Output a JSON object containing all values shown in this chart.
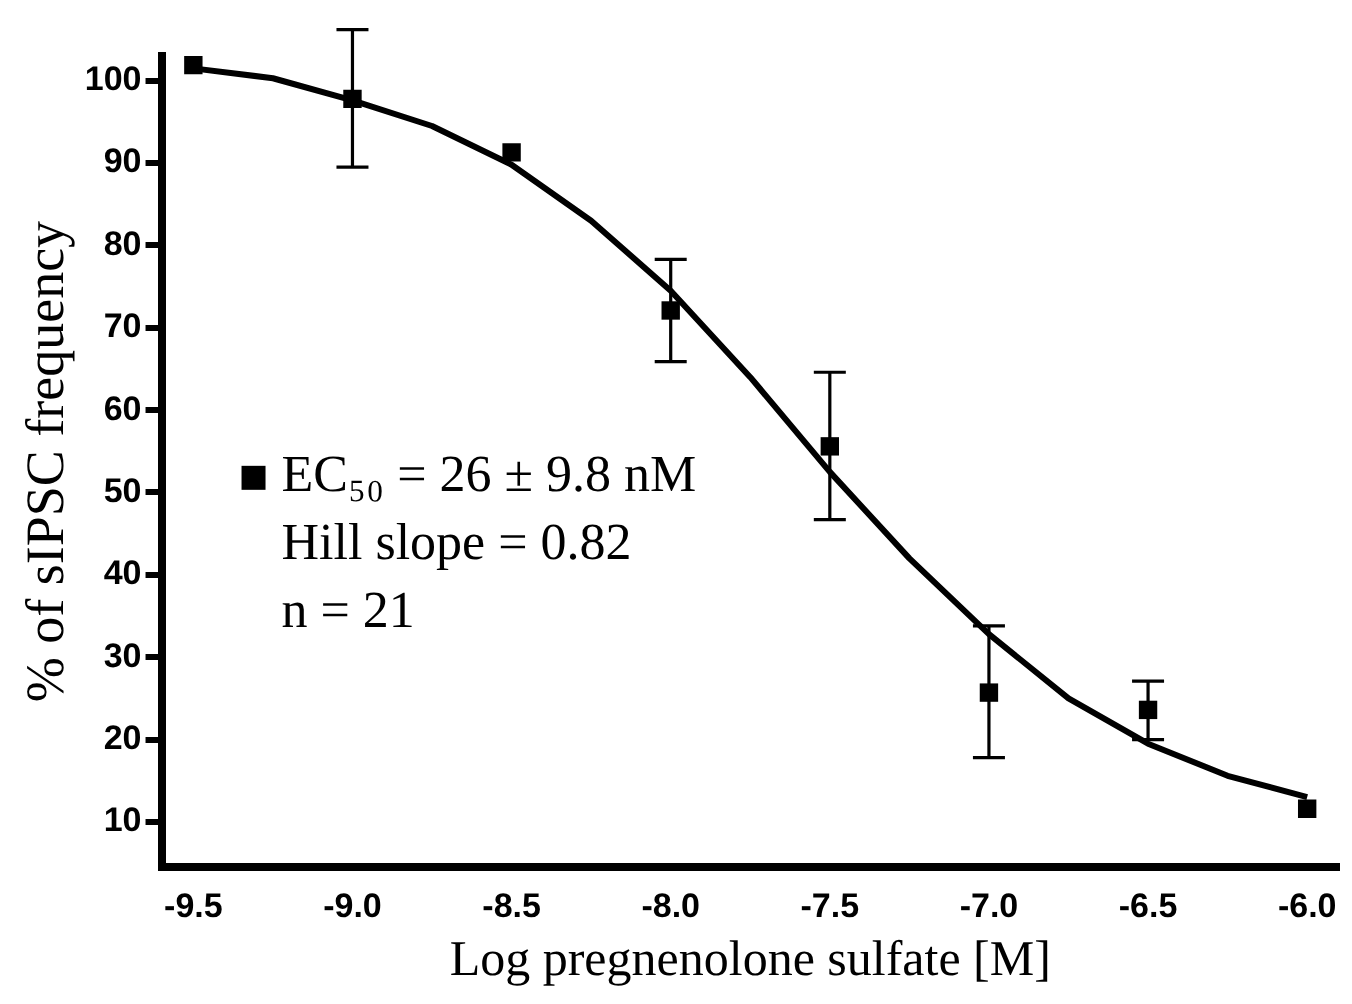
{
  "chart_data": {
    "type": "scatter",
    "xlabel": "Log pregnenolone sulfate [M]",
    "ylabel": "% of sIPSC frequency",
    "xlim": [
      -9.6,
      -5.9
    ],
    "xticks": [
      {
        "value": -9.5,
        "label": "-9.5"
      },
      {
        "value": -9.0,
        "label": "-9.0"
      },
      {
        "value": -8.5,
        "label": "-8.5"
      },
      {
        "value": -8.0,
        "label": "-8.0"
      },
      {
        "value": -7.5,
        "label": "-7.5"
      },
      {
        "value": -7.0,
        "label": "-7.0"
      },
      {
        "value": -6.5,
        "label": "-6.5"
      },
      {
        "value": -6.0,
        "label": "-6.0"
      }
    ],
    "ylim": [
      4.5,
      103
    ],
    "yticks": [
      10,
      20,
      30,
      40,
      50,
      60,
      70,
      80,
      90,
      100
    ],
    "grid": false,
    "legend": "left",
    "marker": "square",
    "annotations": [
      "Hill slope = 0.82",
      "n = 21"
    ],
    "series": [
      {
        "name": "EC₅₀ = 26 ± 9.8 nM",
        "type": "scatter",
        "color": "#000000",
        "x": [
          -9.5,
          -9.0,
          -8.5,
          -8.0,
          -7.5,
          -7.0,
          -6.5,
          -6.0
        ],
        "values": [
          101.9,
          97.8,
          91.3,
          72.1,
          55.6,
          25.7,
          23.6,
          11.6
        ],
        "errors": [
          null,
          [
            89.5,
            106.2
          ],
          null,
          [
            65.9,
            78.3
          ],
          [
            46.7,
            64.6
          ],
          [
            17.8,
            33.8
          ],
          [
            20.0,
            27.1
          ],
          null
        ]
      },
      {
        "type": "line",
        "color": "#000000",
        "marker": "none",
        "line_style": "solid",
        "x": [
          -9.5,
          -9.25,
          -9.0,
          -8.75,
          -8.5,
          -8.25,
          -8.0,
          -7.75,
          -7.5,
          -7.25,
          -7.0,
          -6.75,
          -6.5,
          -6.25,
          -6.0
        ],
        "values": [
          101.5,
          100.3,
          97.6,
          94.5,
          89.8,
          83,
          74.5,
          64,
          52.5,
          42,
          32.8,
          25,
          19.5,
          15.6,
          13.0
        ]
      }
    ]
  }
}
